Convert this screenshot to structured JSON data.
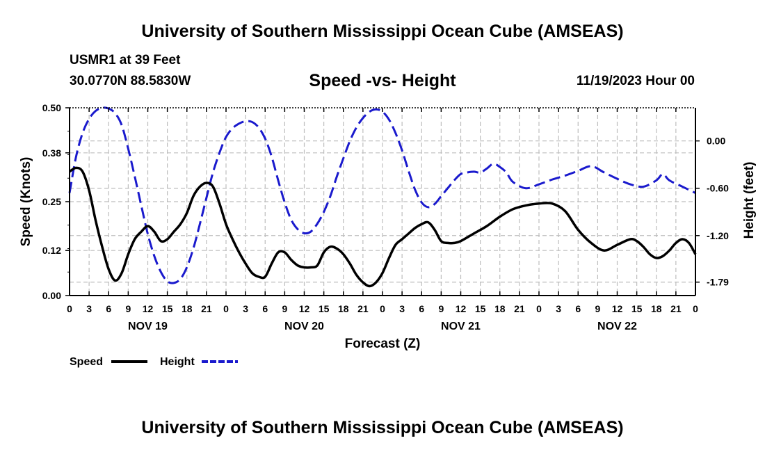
{
  "header": {
    "title": "University of Southern Mississippi Ocean Cube (AMSEAS)",
    "station": "USMR1 at 39 Feet",
    "location": "30.0770N  88.5830W",
    "datetime": "11/19/2023 Hour 00"
  },
  "footer": {
    "title": "University of Southern Mississippi Ocean Cube (AMSEAS)"
  },
  "colors": {
    "speed": "#000000",
    "height": "#1a1acd",
    "grid": "#bdbdbd"
  },
  "chart_data": {
    "type": "line",
    "title": "Speed -vs- Height",
    "xlabel": "Forecast (Z)",
    "ylabel": "Speed (Knots)",
    "y2label": "Height (feet)",
    "xlim": [
      0,
      96
    ],
    "ylim": [
      0,
      0.5
    ],
    "y2lim": [
      -1.96,
      0.42
    ],
    "y_ticks": [
      "0.00",
      "0.12",
      "0.25",
      "0.38",
      "0.50"
    ],
    "y2_ticks": [
      "-1.79",
      "-1.20",
      "-0.60",
      "0.00"
    ],
    "y2_tick_values": [
      -1.79,
      -1.2,
      -0.6,
      0.0
    ],
    "x_tick_labels": [
      "0",
      "3",
      "6",
      "9",
      "12",
      "15",
      "18",
      "21",
      "0",
      "3",
      "6",
      "9",
      "12",
      "15",
      "18",
      "21",
      "0",
      "3",
      "6",
      "9",
      "12",
      "15",
      "18",
      "21",
      "0",
      "3",
      "6",
      "9",
      "12",
      "15",
      "18",
      "21",
      "0"
    ],
    "day_labels": [
      {
        "label": "NOV 19",
        "hour": 12
      },
      {
        "label": "NOV 20",
        "hour": 36
      },
      {
        "label": "NOV 21",
        "hour": 60
      },
      {
        "label": "NOV 22",
        "hour": 84
      }
    ],
    "legend": [
      {
        "name": "Speed",
        "style": "solid"
      },
      {
        "name": "Height",
        "style": "dashed"
      }
    ],
    "series": [
      {
        "name": "Speed",
        "axis": "left",
        "x": [
          0,
          1,
          2,
          3,
          4,
          5,
          6,
          7,
          8,
          9,
          10,
          11,
          12,
          13,
          14,
          15,
          16,
          17,
          18,
          19,
          20,
          21,
          22,
          23,
          24,
          25,
          26,
          27,
          28,
          29,
          30,
          31,
          32,
          33,
          34,
          35,
          36,
          37,
          38,
          39,
          40,
          41,
          42,
          43,
          44,
          45,
          46,
          47,
          48,
          49,
          50,
          51,
          52,
          53,
          54,
          55,
          56,
          57,
          58,
          59,
          60,
          62,
          64,
          66,
          68,
          70,
          72,
          74,
          76,
          78,
          80,
          82,
          84,
          86,
          87,
          88,
          89,
          90,
          91,
          92,
          93,
          94,
          95,
          96
        ],
        "values": [
          0.33,
          0.34,
          0.33,
          0.28,
          0.2,
          0.13,
          0.07,
          0.04,
          0.06,
          0.11,
          0.15,
          0.17,
          0.185,
          0.17,
          0.145,
          0.15,
          0.17,
          0.19,
          0.22,
          0.265,
          0.29,
          0.3,
          0.29,
          0.245,
          0.19,
          0.15,
          0.115,
          0.085,
          0.06,
          0.05,
          0.05,
          0.085,
          0.115,
          0.115,
          0.095,
          0.08,
          0.075,
          0.075,
          0.08,
          0.115,
          0.13,
          0.125,
          0.11,
          0.085,
          0.055,
          0.035,
          0.025,
          0.035,
          0.06,
          0.1,
          0.135,
          0.15,
          0.165,
          0.18,
          0.19,
          0.195,
          0.175,
          0.145,
          0.14,
          0.14,
          0.145,
          0.165,
          0.185,
          0.21,
          0.23,
          0.24,
          0.245,
          0.245,
          0.225,
          0.175,
          0.14,
          0.12,
          0.135,
          0.15,
          0.145,
          0.13,
          0.11,
          0.1,
          0.105,
          0.12,
          0.14,
          0.15,
          0.14,
          0.11
        ]
      },
      {
        "name": "Height",
        "axis": "right",
        "x": [
          0,
          1,
          2,
          3,
          4,
          5,
          6,
          7,
          8,
          9,
          10,
          11,
          12,
          13,
          14,
          15,
          16,
          17,
          18,
          19,
          20,
          21,
          22,
          23,
          24,
          25,
          26,
          27,
          28,
          29,
          30,
          31,
          32,
          33,
          34,
          35,
          36,
          37,
          38,
          39,
          40,
          41,
          42,
          43,
          44,
          45,
          46,
          47,
          48,
          49,
          50,
          51,
          52,
          53,
          54,
          55,
          56,
          57,
          58,
          59,
          60,
          61,
          62,
          63,
          64,
          65,
          66,
          67,
          68,
          70,
          72,
          74,
          76,
          78,
          80,
          82,
          84,
          86,
          88,
          90,
          91,
          92,
          94,
          96
        ],
        "values": [
          -0.66,
          -0.2,
          0.1,
          0.28,
          0.38,
          0.42,
          0.41,
          0.35,
          0.2,
          -0.1,
          -0.45,
          -0.82,
          -1.18,
          -1.46,
          -1.66,
          -1.78,
          -1.8,
          -1.75,
          -1.6,
          -1.36,
          -1.05,
          -0.72,
          -0.4,
          -0.15,
          0.05,
          0.16,
          0.22,
          0.25,
          0.24,
          0.17,
          0.03,
          -0.2,
          -0.5,
          -0.78,
          -1.0,
          -1.12,
          -1.17,
          -1.15,
          -1.05,
          -0.9,
          -0.7,
          -0.45,
          -0.22,
          0.0,
          0.17,
          0.29,
          0.37,
          0.4,
          0.37,
          0.27,
          0.1,
          -0.12,
          -0.38,
          -0.62,
          -0.78,
          -0.84,
          -0.8,
          -0.7,
          -0.6,
          -0.5,
          -0.42,
          -0.4,
          -0.39,
          -0.4,
          -0.35,
          -0.29,
          -0.33,
          -0.4,
          -0.52,
          -0.6,
          -0.55,
          -0.49,
          -0.44,
          -0.38,
          -0.32,
          -0.4,
          -0.48,
          -0.55,
          -0.58,
          -0.5,
          -0.42,
          -0.5,
          -0.58,
          -0.66
        ]
      }
    ]
  }
}
